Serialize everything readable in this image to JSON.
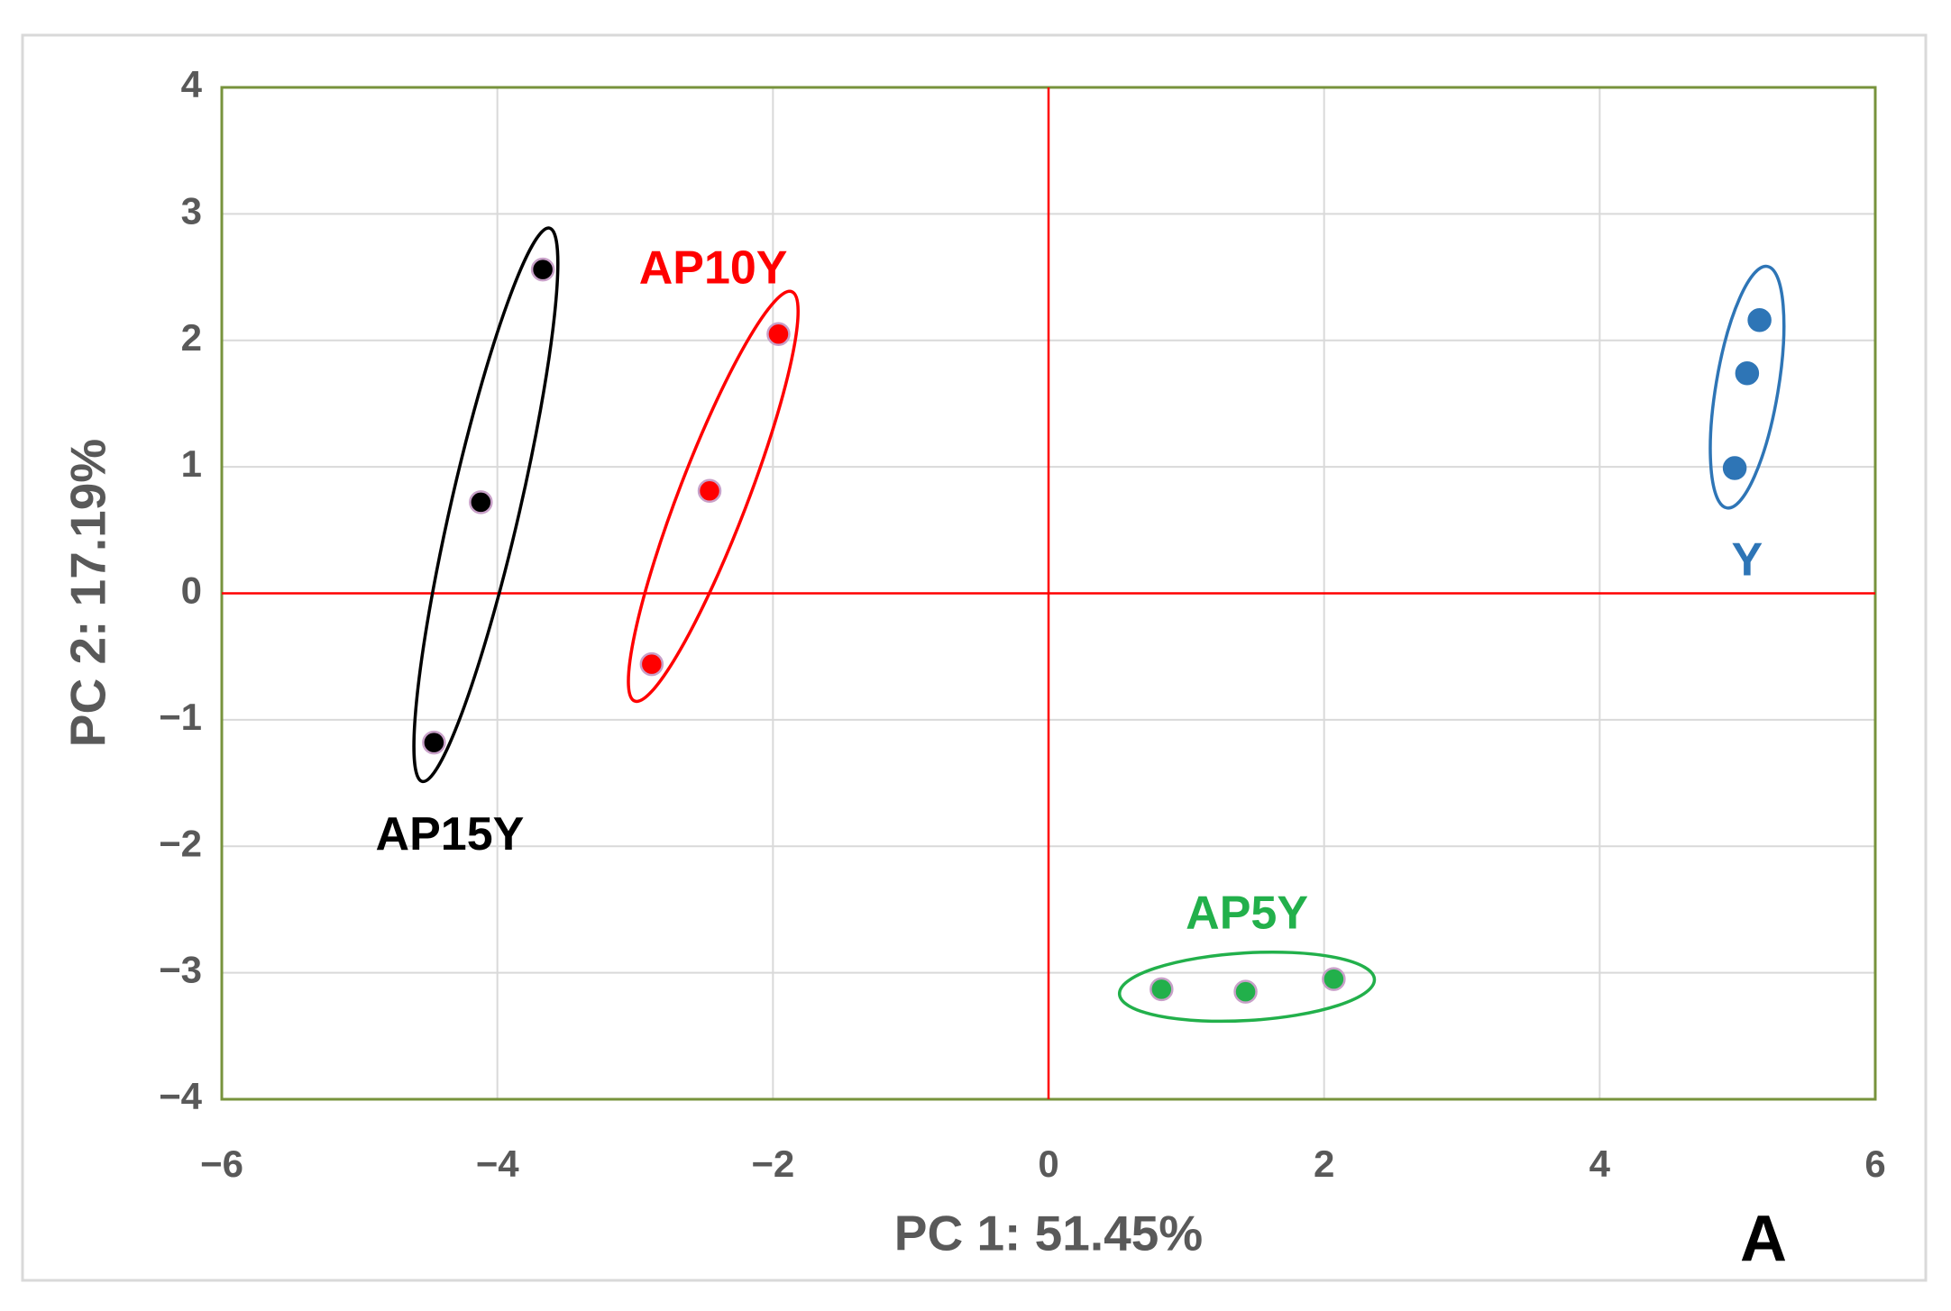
{
  "chart_data": {
    "type": "scatter",
    "x_label": "PC 1: 51.45%",
    "y_label": "PC 2: 17.19%",
    "panel_label": "A",
    "xlim": [
      -6,
      6
    ],
    "ylim": [
      -4,
      4
    ],
    "xticks": [
      {
        "value": -6,
        "label": "−6"
      },
      {
        "value": -4,
        "label": "−4"
      },
      {
        "value": -2,
        "label": "−2"
      },
      0,
      2,
      4,
      6
    ],
    "yticks": [
      {
        "value": -4,
        "label": "−4"
      },
      {
        "value": -3,
        "label": "−3"
      },
      {
        "value": -2,
        "label": "−2"
      },
      {
        "value": -1,
        "label": "−1"
      },
      0,
      1,
      2,
      3,
      4
    ],
    "grid": true,
    "origin_lines_color": "#ff0000",
    "series": [
      {
        "name": "AP15Y",
        "color": "#000000",
        "x": [
          -3.67,
          -4.12,
          -4.46
        ],
        "values": [
          2.56,
          0.72,
          -1.18
        ]
      },
      {
        "name": "AP10Y",
        "color": "#ff0000",
        "x": [
          -1.96,
          -2.46,
          -2.88
        ],
        "values": [
          2.05,
          0.81,
          -0.56
        ]
      },
      {
        "name": "AP5Y",
        "color": "#22b04b",
        "x": [
          0.82,
          1.43,
          2.07
        ],
        "values": [
          -3.13,
          -3.15,
          -3.05
        ]
      },
      {
        "name": "Y",
        "color": "#2e75b6",
        "x": [
          5.16,
          5.07,
          4.98
        ],
        "values": [
          2.16,
          1.74,
          0.99
        ]
      }
    ]
  }
}
